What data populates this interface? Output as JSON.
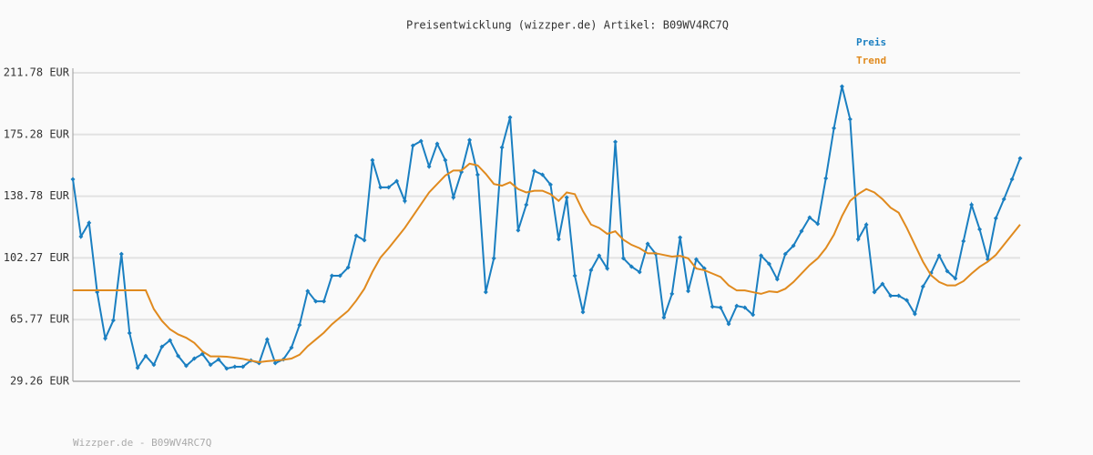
{
  "chart_data": {
    "type": "line",
    "title": "Preisentwicklung (wizzper.de) Artikel: B09WV4RC7Q",
    "footer": "Wizzper.de - B09WV4RC7Q",
    "ylim": [
      29.26,
      211.78
    ],
    "yticks": [
      {
        "value": 29.26,
        "label": "29.26 EUR"
      },
      {
        "value": 65.77,
        "label": "65.77 EUR"
      },
      {
        "value": 102.27,
        "label": "102.27 EUR"
      },
      {
        "value": 138.78,
        "label": "138.78 EUR"
      },
      {
        "value": 175.28,
        "label": "175.28 EUR"
      },
      {
        "value": 211.78,
        "label": "211.78 EUR"
      }
    ],
    "grid": true,
    "legend": "top-right",
    "series": [
      {
        "name": "Preis",
        "color": "#1a7fc1",
        "markers": true,
        "values": [
          148.8,
          114.9,
          123,
          82,
          54.6,
          65.3,
          104.6,
          57.8,
          37.3,
          44.3,
          39,
          49.7,
          53.5,
          44.3,
          38.4,
          42.7,
          45.4,
          39,
          42.2,
          36.8,
          37.9,
          37.9,
          41.6,
          40,
          54,
          40,
          42.2,
          49.2,
          62.6,
          82.6,
          76.6,
          76.6,
          91.7,
          91.7,
          96.6,
          115.4,
          112.7,
          160.1,
          144,
          144,
          147.7,
          135.9,
          168.7,
          171.4,
          156.3,
          169.8,
          160.1,
          138,
          153.1,
          172,
          151.5,
          82,
          102,
          167.6,
          185.4,
          118.6,
          133.7,
          153.7,
          151.5,
          145.6,
          113.3,
          138,
          91.7,
          70.2,
          95,
          103.6,
          96,
          170.9,
          102,
          97.1,
          93.9,
          110.6,
          104.6,
          67,
          81,
          114.3,
          82.6,
          101.4,
          96,
          73.4,
          72.9,
          63.2,
          73.9,
          72.9,
          68.6,
          103.6,
          98.7,
          89.6,
          104.6,
          109.5,
          118.1,
          126.2,
          122.4,
          149.3,
          179,
          203.7,
          184.3,
          113.3,
          121.9,
          82,
          86.9,
          79.9,
          79.9,
          77.2,
          69.1,
          85.3,
          93.3,
          103.6,
          94.4,
          90.1,
          112.2,
          133.7,
          119.2,
          101.4,
          125.7,
          137,
          148.8,
          161.2
        ]
      },
      {
        "name": "Trend",
        "color": "#e08a1e",
        "markers": false,
        "values": [
          83.1,
          83.1,
          83.1,
          83.1,
          83.1,
          83.1,
          83.1,
          83.1,
          83.1,
          83.1,
          72,
          65,
          60,
          57,
          55,
          52,
          47,
          44,
          44,
          43.8,
          43.2,
          42.5,
          41.5,
          40.6,
          41.2,
          41.6,
          42,
          42.7,
          45,
          50,
          54,
          58,
          63,
          67,
          71,
          77,
          84,
          94,
          102.5,
          108,
          114,
          120,
          127,
          134,
          141,
          146,
          151,
          154,
          154,
          158,
          157,
          152,
          146,
          145,
          147,
          143,
          141,
          142,
          142,
          140,
          136,
          141,
          140,
          130,
          122,
          120,
          116.5,
          118,
          113,
          110,
          108,
          105,
          105,
          104,
          103,
          103.5,
          102,
          96,
          95,
          93,
          91,
          86,
          83,
          83,
          82,
          81,
          82.5,
          82,
          84,
          88,
          93,
          98,
          102,
          108,
          116,
          127,
          136,
          140,
          143,
          141,
          137,
          132,
          129,
          120,
          110,
          100,
          92,
          88,
          86,
          86,
          88.5,
          93,
          97,
          100,
          104,
          110,
          116,
          122
        ]
      }
    ]
  }
}
